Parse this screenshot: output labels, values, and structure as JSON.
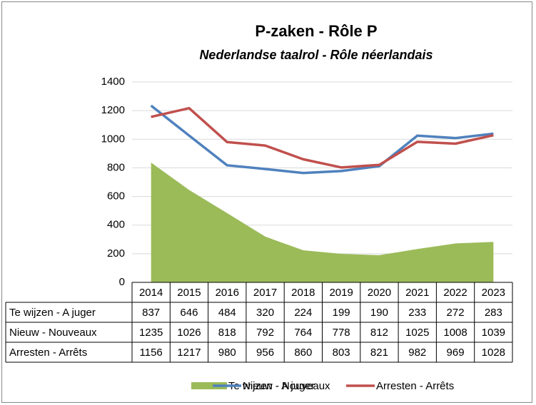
{
  "chart_data": {
    "type": "line",
    "title": "P-zaken - Rôle P",
    "subtitle": "Nederlandse taalrol - Rôle néerlandais",
    "categories": [
      "2014",
      "2015",
      "2016",
      "2017",
      "2018",
      "2019",
      "2020",
      "2021",
      "2022",
      "2023"
    ],
    "series": [
      {
        "name": "Te wijzen - A juger",
        "type": "area",
        "color": "#9bbb59",
        "values": [
          837,
          646,
          484,
          320,
          224,
          199,
          190,
          233,
          272,
          283
        ]
      },
      {
        "name": "Nieuw - Nouveaux",
        "type": "line",
        "color": "#4f81bd",
        "values": [
          1235,
          1026,
          818,
          792,
          764,
          778,
          812,
          1025,
          1008,
          1039
        ]
      },
      {
        "name": "Arresten - Arrêts",
        "type": "line",
        "color": "#c0504d",
        "values": [
          1156,
          1217,
          980,
          956,
          860,
          803,
          821,
          982,
          969,
          1028
        ]
      }
    ],
    "ylim": [
      0,
      1400
    ],
    "yticks": [
      0,
      200,
      400,
      600,
      800,
      1000,
      1200,
      1400
    ],
    "grid": true,
    "legend": "bottom",
    "data_table": true
  }
}
